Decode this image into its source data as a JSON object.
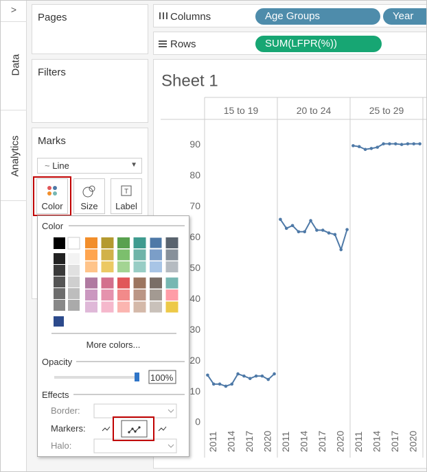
{
  "left_tabs": {
    "expand": ">",
    "tabs": [
      "Data",
      "Analytics"
    ]
  },
  "pages": {
    "title": "Pages"
  },
  "filters": {
    "title": "Filters"
  },
  "marks": {
    "title": "Marks",
    "mark_type": "Line",
    "buttons": [
      "Color",
      "Size",
      "Label"
    ]
  },
  "shelves": {
    "columns": {
      "label": "Columns",
      "pills": [
        "Age Groups",
        "Year"
      ]
    },
    "rows": {
      "label": "Rows",
      "pills": [
        "SUM(LFPR(%))"
      ]
    }
  },
  "color_popup": {
    "title": "Color",
    "more_colors": "More colors...",
    "opacity_label": "Opacity",
    "opacity_value": "100%",
    "effects_label": "Effects",
    "border_label": "Border:",
    "markers_label": "Markers:",
    "halo_label": "Halo:"
  },
  "chart_data": {
    "type": "line",
    "title": "Sheet 1",
    "color": "#4e79a7",
    "markers": true,
    "x": [
      2010,
      2011,
      2012,
      2013,
      2014,
      2015,
      2016,
      2017,
      2018,
      2019,
      2020,
      2021
    ],
    "xlim": [
      2009.5,
      2021.5
    ],
    "xticks": [
      2011,
      2014,
      2017,
      2020
    ],
    "ylim": [
      0,
      95
    ],
    "yticks": [
      0,
      10,
      20,
      30,
      40,
      50,
      60,
      70,
      80,
      90
    ],
    "facets": [
      {
        "label": "15 to 19",
        "values": [
          15.4,
          12.5,
          12.5,
          11.8,
          12.5,
          15.8,
          15.1,
          14.3,
          15.1,
          15.1,
          14.0,
          15.8
        ]
      },
      {
        "label": "20 to 24",
        "values": [
          65.9,
          63.0,
          63.9,
          61.9,
          61.9,
          65.5,
          62.4,
          62.4,
          61.5,
          61.0,
          56.1,
          62.6
        ]
      },
      {
        "label": "25 to 29",
        "values": [
          89.8,
          89.5,
          88.6,
          88.9,
          89.3,
          90.4,
          90.4,
          90.4,
          90.2,
          90.4,
          90.4,
          90.4
        ]
      }
    ]
  }
}
